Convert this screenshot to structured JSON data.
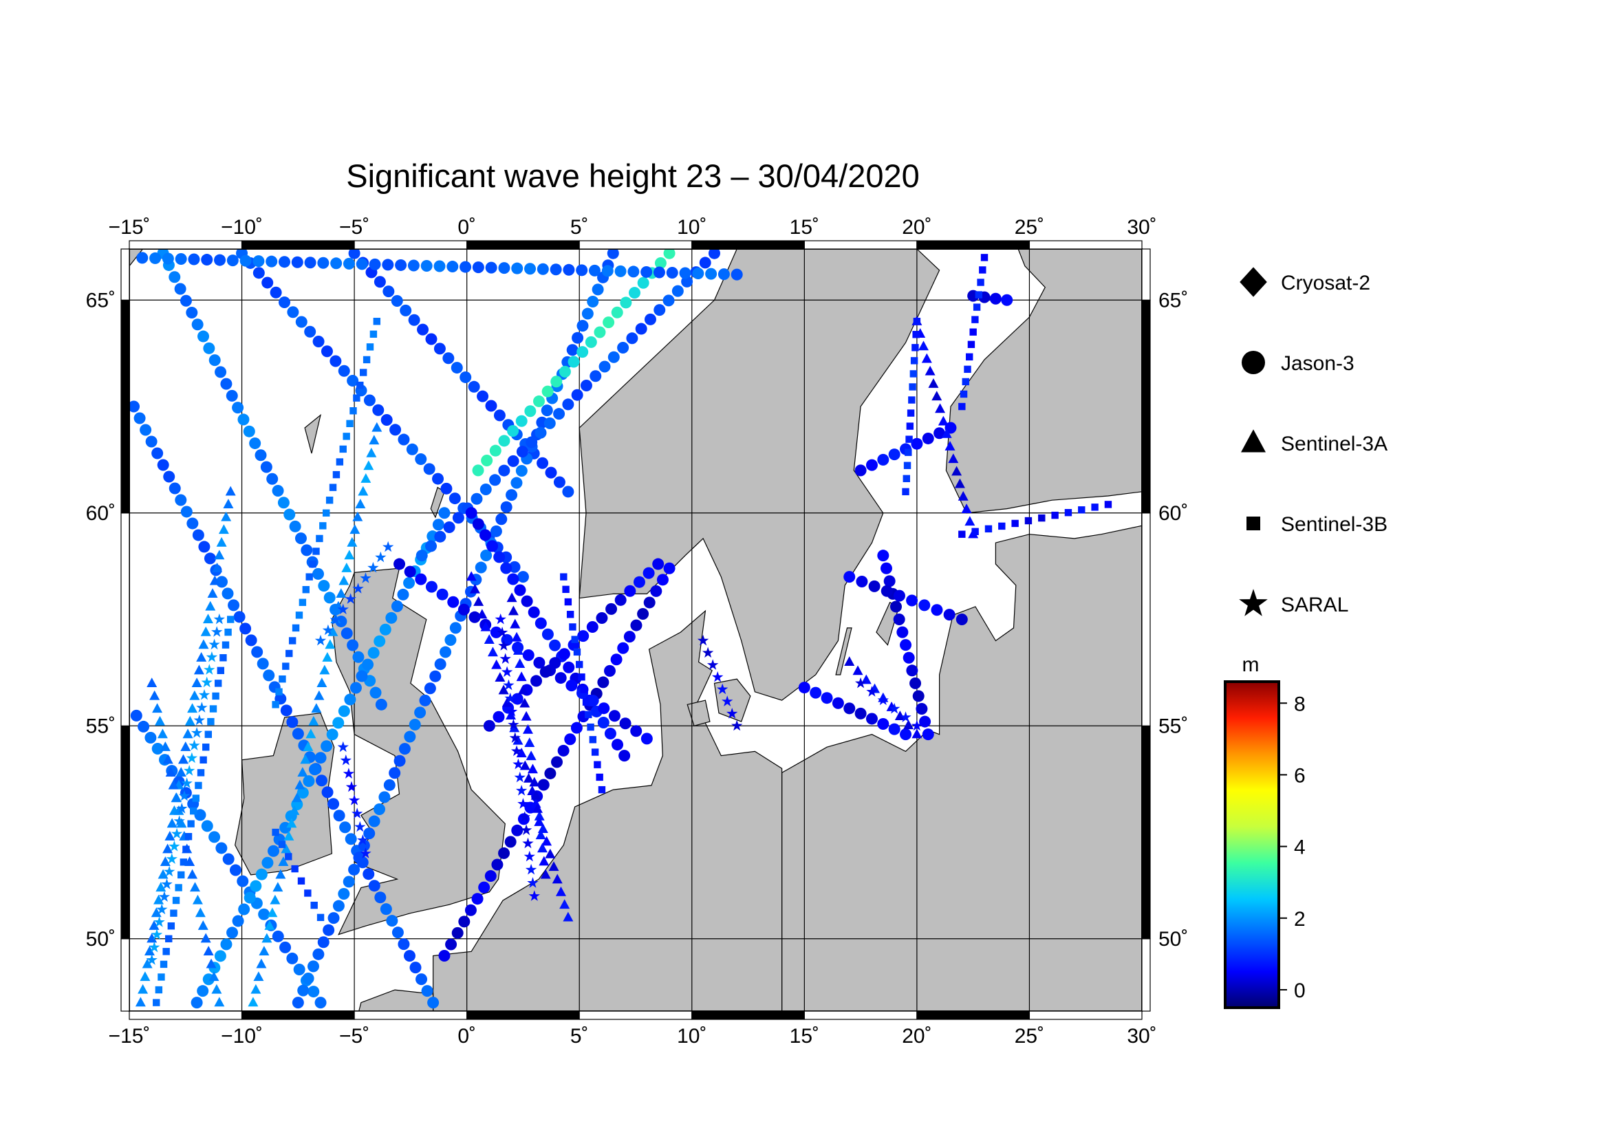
{
  "title": "Significant wave height 23 – 30/04/2020",
  "map": {
    "lon_range": [
      -15,
      30
    ],
    "lat_range": [
      48.3,
      66.2
    ],
    "lon_ticks": [
      -15,
      -10,
      -5,
      0,
      5,
      10,
      15,
      20,
      25,
      30
    ],
    "lat_ticks": [
      50,
      55,
      60,
      65
    ],
    "lon_tick_labels": [
      "−15˚",
      "−10˚",
      "−5˚",
      "0˚",
      "5˚",
      "10˚",
      "15˚",
      "20˚",
      "25˚",
      "30˚"
    ],
    "lat_tick_labels": [
      "50˚",
      "55˚",
      "60˚",
      "65˚"
    ],
    "grid": true,
    "land_color": "#bebebe",
    "sea_color": "#ffffff"
  },
  "legend": {
    "placement": "right",
    "items": [
      {
        "label": "Cryosat-2",
        "symbol": "diamond"
      },
      {
        "label": "Jason-3",
        "symbol": "circle"
      },
      {
        "label": "Sentinel-3A",
        "symbol": "triangle"
      },
      {
        "label": "Sentinel-3B",
        "symbol": "square"
      },
      {
        "label": "SARAL",
        "symbol": "star"
      }
    ]
  },
  "colorbar": {
    "unit": "m",
    "min": -0.5,
    "max": 8.6,
    "tick_values": [
      0,
      2,
      4,
      6,
      8
    ],
    "tick_labels": [
      "0",
      "2",
      "4",
      "6",
      "8"
    ],
    "colormap": [
      "#00006e",
      "#0000ff",
      "#0064ff",
      "#00c8ff",
      "#3cffa0",
      "#c8ff3c",
      "#ffff00",
      "#ff9600",
      "#ff1e00",
      "#8c0000"
    ]
  },
  "chart_data": {
    "type": "scatter",
    "description_free": true,
    "series": [
      {
        "name": "Jason-3",
        "symbol": "circle",
        "tracks": [
          {
            "from": [
              -14.8,
              62.5
            ],
            "to": [
              -1.5,
              48.5
            ],
            "swh": 1.4
          },
          {
            "from": [
              -13.5,
              66.1
            ],
            "to": [
              -3.8,
              55.5
            ],
            "swh": 1.7
          },
          {
            "from": [
              -10.0,
              66.1
            ],
            "to": [
              2.5,
              58.5
            ],
            "swh": 1.3
          },
          {
            "from": [
              -5.0,
              66.1
            ],
            "to": [
              4.5,
              60.5
            ],
            "swh": 1.2
          },
          {
            "from": [
              -15.0,
              55.5
            ],
            "to": [
              -6.5,
              48.5
            ],
            "swh": 1.6
          },
          {
            "from": [
              -12.0,
              48.5
            ],
            "to": [
              -1.0,
              60.0
            ],
            "swh": 1.9
          },
          {
            "from": [
              -7.5,
              48.5
            ],
            "to": [
              6.5,
              66.1
            ],
            "swh": 1.5
          },
          {
            "from": [
              0.5,
              61.0
            ],
            "to": [
              9.0,
              66.1
            ],
            "swh": 3.1
          },
          {
            "from": [
              -2.0,
              59.0
            ],
            "to": [
              11.0,
              66.1
            ],
            "swh": 1.3
          },
          {
            "from": [
              -1.0,
              49.6
            ],
            "to": [
              9.0,
              58.7
            ],
            "swh": 0.3
          },
          {
            "from": [
              0.2,
              60.0
            ],
            "to": [
              7.0,
              54.3
            ],
            "swh": 0.6
          },
          {
            "from": [
              -3.0,
              58.8
            ],
            "to": [
              8.0,
              54.7
            ],
            "swh": 0.5
          },
          {
            "from": [
              1.0,
              55.0
            ],
            "to": [
              8.5,
              58.8
            ],
            "swh": 0.4
          },
          {
            "from": [
              15.0,
              55.9
            ],
            "to": [
              19.5,
              54.8
            ],
            "swh": 0.4
          },
          {
            "from": [
              18.5,
              59.0
            ],
            "to": [
              20.5,
              54.8
            ],
            "swh": 0.3
          },
          {
            "from": [
              17.0,
              58.5
            ],
            "to": [
              22.0,
              57.5
            ],
            "swh": 0.4
          },
          {
            "from": [
              21.5,
              62.0
            ],
            "to": [
              17.5,
              61.0
            ],
            "swh": 0.6
          },
          {
            "from": [
              22.5,
              65.1
            ],
            "to": [
              24.0,
              65.0
            ],
            "swh": 0.4
          },
          {
            "from": [
              -15.0,
              66.0
            ],
            "to": [
              12.0,
              65.6
            ],
            "swh": 1.5
          }
        ]
      },
      {
        "name": "Sentinel-3A",
        "symbol": "triangle",
        "tracks": [
          {
            "from": [
              -14.5,
              48.5
            ],
            "to": [
              -10.5,
              60.5
            ],
            "swh": 1.8
          },
          {
            "from": [
              -11.0,
              48.5
            ],
            "to": [
              -14.0,
              56.0
            ],
            "swh": 1.7
          },
          {
            "from": [
              -9.5,
              48.5
            ],
            "to": [
              -4.0,
              62.0
            ],
            "swh": 2.0
          },
          {
            "from": [
              0.2,
              58.5
            ],
            "to": [
              4.5,
              50.5
            ],
            "swh": 0.5
          },
          {
            "from": [
              2.0,
              58.0
            ],
            "to": [
              3.5,
              51.5
            ],
            "swh": 0.5
          },
          {
            "from": [
              17.0,
              56.5
            ],
            "to": [
              20.0,
              54.8
            ],
            "swh": 0.5
          },
          {
            "from": [
              20.0,
              64.5
            ],
            "to": [
              22.5,
              59.5
            ],
            "swh": 0.4
          }
        ]
      },
      {
        "name": "Sentinel-3B",
        "symbol": "square",
        "tracks": [
          {
            "from": [
              -13.8,
              48.5
            ],
            "to": [
              -10.5,
              57.5
            ],
            "swh": 1.6
          },
          {
            "from": [
              -8.5,
              55.5
            ],
            "to": [
              -4.0,
              64.5
            ],
            "swh": 1.6
          },
          {
            "from": [
              -6.5,
              50.5
            ],
            "to": [
              -8.5,
              52.5
            ],
            "swh": 1.2
          },
          {
            "from": [
              4.3,
              58.5
            ],
            "to": [
              6.0,
              53.5
            ],
            "swh": 0.8
          },
          {
            "from": [
              20.0,
              64.5
            ],
            "to": [
              19.5,
              60.5
            ],
            "swh": 0.9
          },
          {
            "from": [
              23.0,
              66.0
            ],
            "to": [
              22.0,
              62.5
            ],
            "swh": 0.7
          },
          {
            "from": [
              22.0,
              59.5
            ],
            "to": [
              28.5,
              60.2
            ],
            "swh": 0.5
          }
        ]
      },
      {
        "name": "SARAL",
        "symbol": "star",
        "tracks": [
          {
            "from": [
              -14.0,
              49.5
            ],
            "to": [
              -11.0,
              57.5
            ],
            "swh": 2.0
          },
          {
            "from": [
              -6.5,
              57.0
            ],
            "to": [
              -3.5,
              59.2
            ],
            "swh": 1.4
          },
          {
            "from": [
              -5.5,
              54.5
            ],
            "to": [
              -4.5,
              52.0
            ],
            "swh": 0.7
          },
          {
            "from": [
              1.5,
              57.5
            ],
            "to": [
              3.0,
              51.0
            ],
            "swh": 0.5
          },
          {
            "from": [
              10.5,
              57.0
            ],
            "to": [
              12.0,
              55.0
            ],
            "swh": 0.4
          },
          {
            "from": [
              17.5,
              56.0
            ],
            "to": [
              20.0,
              55.0
            ],
            "swh": 0.5
          }
        ]
      }
    ]
  }
}
